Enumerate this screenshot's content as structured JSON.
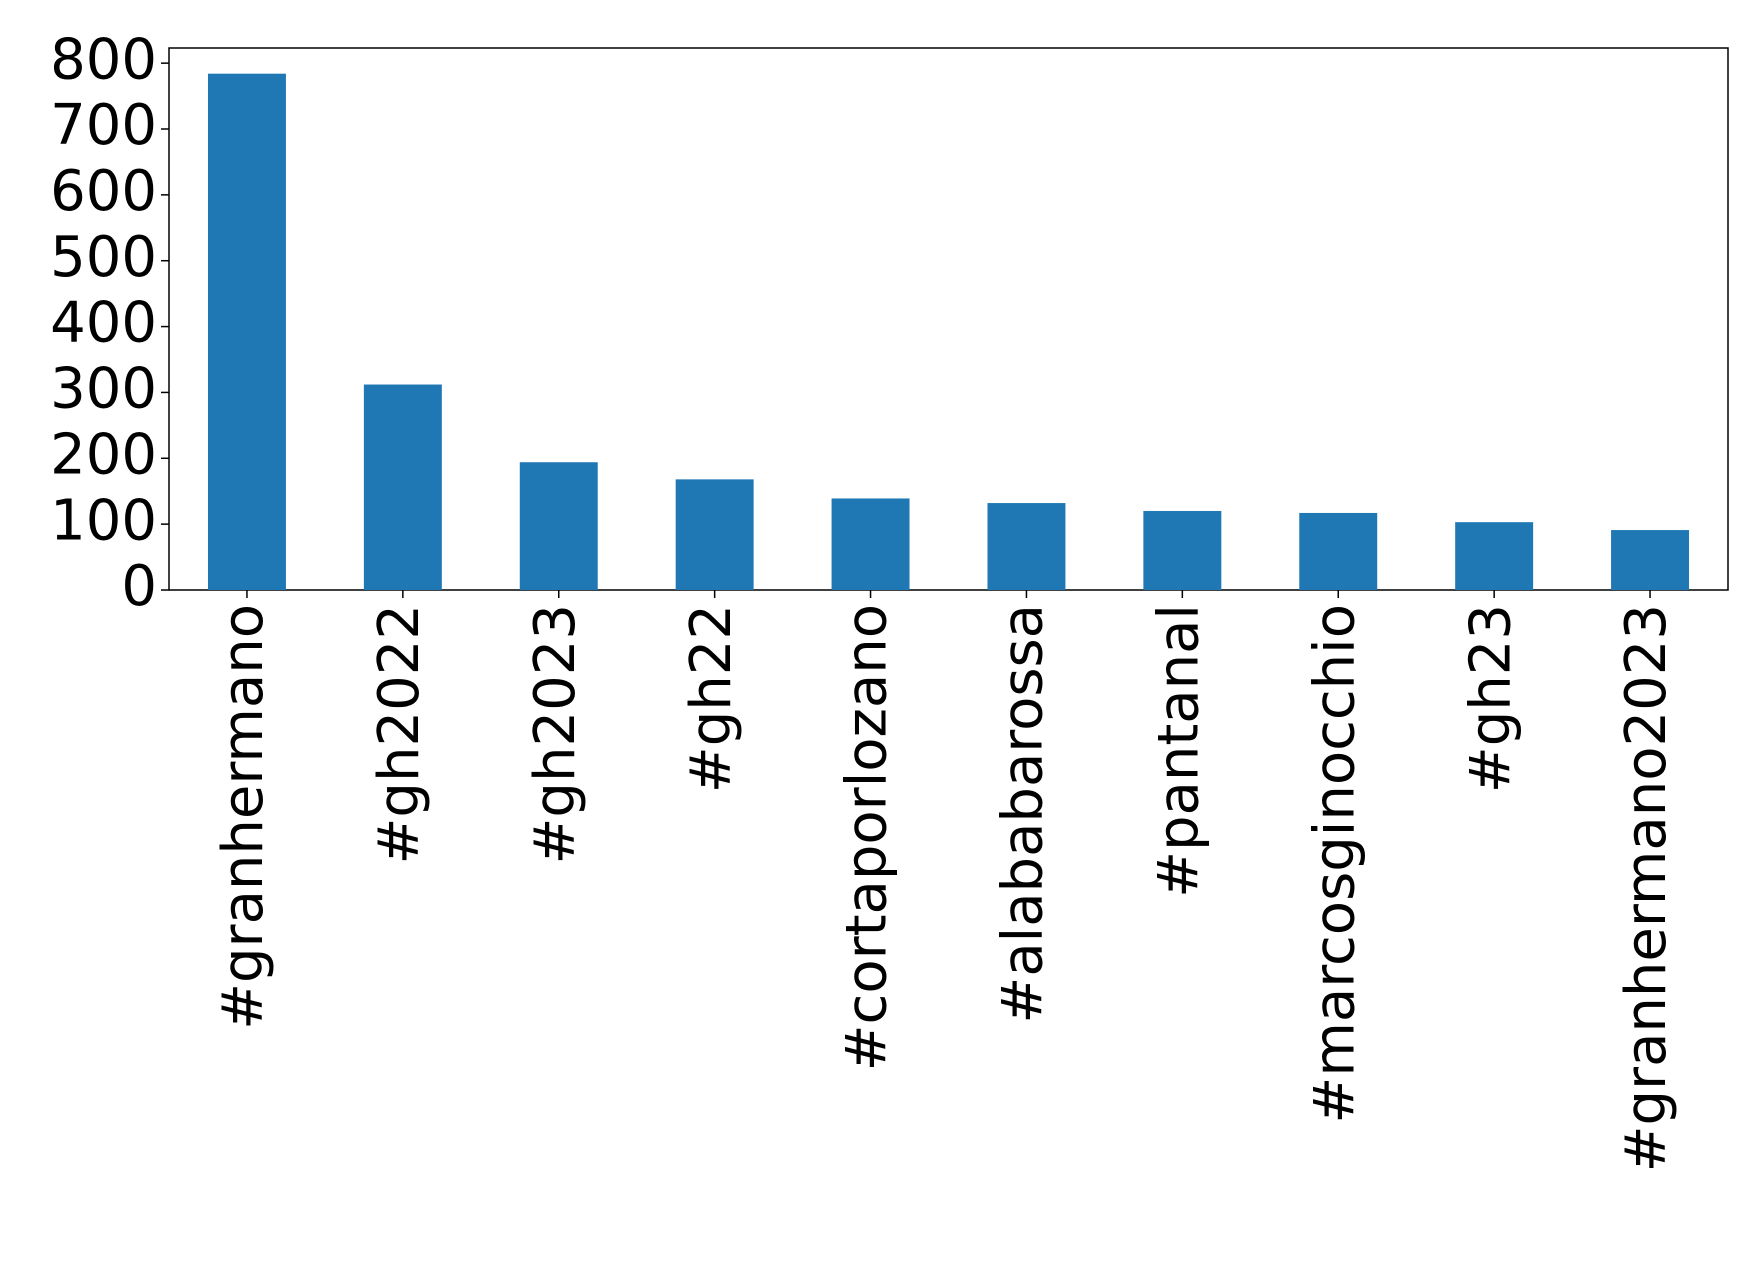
{
  "chart_data": {
    "type": "bar",
    "categories": [
      "#granhermano",
      "#gh2022",
      "#gh2023",
      "#gh22",
      "#cortaporlozano",
      "#alababarossa",
      "#pantanal",
      "#marcosginocchio",
      "#gh23",
      "#granhermano2023"
    ],
    "values": [
      784,
      312,
      194,
      168,
      139,
      132,
      120,
      117,
      103,
      91
    ],
    "color": "#1f77b4",
    "ylim": [
      0,
      823
    ],
    "yticks": [
      0,
      100,
      200,
      300,
      400,
      500,
      600,
      700,
      800
    ],
    "grid": false
  }
}
